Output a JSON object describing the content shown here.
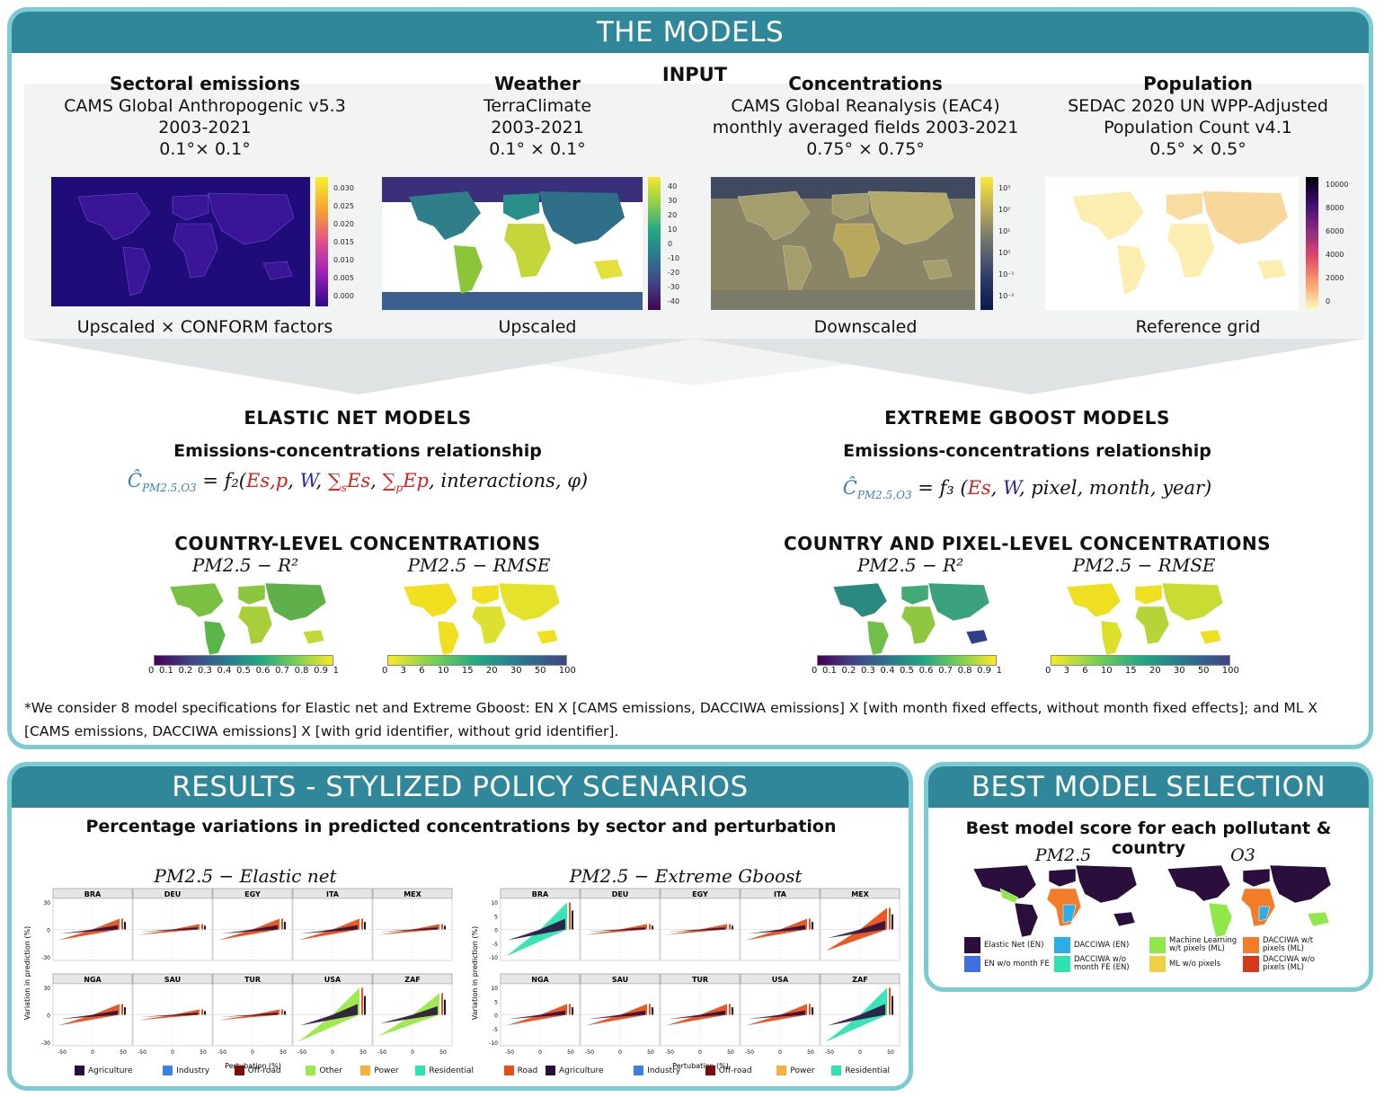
{
  "models_panel": {
    "title": "THE MODELS",
    "input_label": "INPUT",
    "inputs": [
      {
        "title": "Sectoral emissions",
        "line1": "CAMS Global Anthropogenic v5.3",
        "line2": "2003-2021",
        "line3": "0.1°× 0.1°",
        "caption": "Upscaled × CONFORM factors",
        "ticks": [
          "0.030",
          "0.025",
          "0.020",
          "0.015",
          "0.010",
          "0.005",
          "0.000"
        ]
      },
      {
        "title": "Weather",
        "line1": "TerraClimate",
        "line2": "2003-2021",
        "line3": "0.1° × 0.1°",
        "caption": "Upscaled",
        "ticks": [
          "40",
          "30",
          "20",
          "10",
          "0",
          "-10",
          "-20",
          "-30",
          "-40"
        ]
      },
      {
        "title": "Concentrations",
        "line1": "CAMS Global Reanalysis (EAC4)",
        "line2": "monthly averaged fields 2003-2021",
        "line3": "0.75° × 0.75°",
        "caption": "Downscaled",
        "ticks": [
          "10³",
          "10²",
          "10¹",
          "10⁰",
          "10⁻¹",
          "10⁻²"
        ]
      },
      {
        "title": "Population",
        "line1": "SEDAC 2020 UN WPP-Adjusted",
        "line2": "Population Count v4.1",
        "line3": "0.5° × 0.5°",
        "caption": "Reference grid",
        "ticks": [
          "10000",
          "8000",
          "6000",
          "4000",
          "2000",
          "0"
        ]
      }
    ],
    "elastic": {
      "title": "ELASTIC NET MODELS",
      "subtitle": "Emissions-concentrations relationship",
      "formula": {
        "lhs": "Ĉ",
        "lhs_sub": "PM2.5,O3",
        "eq": " = f₂(",
        "e_sp": "Es,p",
        ", ": ", ",
        "w": "W",
        "sum_s": "∑",
        "es": "Es",
        "sum_p": "∑",
        "ep": "Ep",
        "rest": ", interactions, φ)",
        "s": "s",
        "p": "p"
      },
      "conc_title": "COUNTRY-LEVEL CONCENTRATIONS",
      "map1_label": "PM2.5 − R²",
      "map2_label": "PM2.5 − RMSE",
      "r2_ticks": [
        "0",
        "0.1",
        "0.2",
        "0.3",
        "0.4",
        "0.5",
        "0.6",
        "0.7",
        "0.8",
        "0.9",
        "1"
      ],
      "rmse_ticks": [
        "0",
        "3",
        "6",
        "10",
        "15",
        "20",
        "30",
        "50",
        "100"
      ]
    },
    "xgb": {
      "title": "EXTREME GBOOST MODELS",
      "subtitle": "Emissions-concentrations relationship",
      "formula": {
        "lhs": "Ĉ",
        "lhs_sub": "PM2.5,O3",
        "eq": " = f₃ (",
        "es": "Es",
        ", ": ", ",
        "w": "W",
        "rest": ", pixel, month, year)"
      },
      "conc_title": "COUNTRY AND PIXEL-LEVEL CONCENTRATIONS",
      "map1_label": "PM2.5 − R²",
      "map2_label": "PM2.5 − RMSE",
      "r2_ticks": [
        "0",
        "0.1",
        "0.2",
        "0.3",
        "0.4",
        "0.5",
        "0.6",
        "0.7",
        "0.8",
        "0.9",
        "1"
      ],
      "rmse_ticks": [
        "0",
        "3",
        "6",
        "10",
        "15",
        "20",
        "30",
        "50",
        "100"
      ]
    },
    "footnote": "*We consider 8 model specifications for Elastic net and Extreme Gboost: EN X [CAMS emissions, DACCIWA emissions] X [with month fixed effects, without month fixed effects]; and ML X [CAMS emissions, DACCIWA emissions] X [with grid identifier, without grid identifier]."
  },
  "results_panel": {
    "title": "RESULTS - STYLIZED POLICY SCENARIOS",
    "subtitle": "Percentage variations in predicted concentrations by sector and perturbation",
    "chart_data": [
      {
        "type": "area",
        "title": "PM2.5 − Elastic net",
        "ylabel": "Variation in prediction (%)",
        "xlabel": "Pertubation (%)",
        "facets": [
          "BRA",
          "DEU",
          "EGY",
          "ITA",
          "MEX",
          "NGA",
          "SAU",
          "TUR",
          "USA",
          "ZAF"
        ],
        "x_ticks": [
          "-50",
          "0",
          "50"
        ],
        "y_ticks": [
          "30",
          "0",
          "-30"
        ],
        "peaks": [
          2,
          1,
          2,
          2,
          1,
          2,
          1,
          1,
          5,
          4
        ],
        "series": [
          {
            "name": "Agriculture"
          },
          {
            "name": "Industry"
          },
          {
            "name": "Off-road"
          },
          {
            "name": "Other"
          },
          {
            "name": "Power"
          },
          {
            "name": "Residential"
          },
          {
            "name": "Road"
          }
        ]
      },
      {
        "type": "area",
        "title": "PM2.5 − Extreme Gboost",
        "ylabel": "Variation in prediction (%)",
        "xlabel": "Pertubation (%)",
        "facets": [
          "BRA",
          "DEU",
          "EGY",
          "ITA",
          "MEX",
          "NGA",
          "SAU",
          "TUR",
          "USA",
          "ZAF"
        ],
        "x_ticks": [
          "-50",
          "0",
          "50"
        ],
        "y_ticks": [
          "10",
          "5",
          "0",
          "-5",
          "-10"
        ],
        "peaks": [
          5,
          1,
          1,
          2,
          4,
          2,
          2,
          2,
          2,
          5
        ],
        "series": [
          {
            "name": "Agriculture"
          },
          {
            "name": "Industry"
          },
          {
            "name": "Off-road"
          },
          {
            "name": "Power"
          },
          {
            "name": "Residential"
          },
          {
            "name": "Road"
          }
        ]
      }
    ],
    "legend1": [
      "Agriculture",
      "Industry",
      "Off-road",
      "Other",
      "Power",
      "Residential",
      "Road"
    ],
    "legend2": [
      "Agriculture",
      "Industry",
      "Off-road",
      "Power",
      "Residential",
      "Road"
    ]
  },
  "best_panel": {
    "title": "BEST MODEL SELECTION",
    "subtitle": "Best model score for each pollutant & country",
    "map1_label": "PM2.5",
    "map2_label": "O3",
    "legend": [
      {
        "label": "Elastic Net (EN)",
        "color": "#2a0f3d"
      },
      {
        "label": "EN w/o month FE",
        "color": "#3f6fe0"
      },
      {
        "label": "DACCIWA (EN)",
        "color": "#2aaee8"
      },
      {
        "label": "DACCIWA w/o month FE (EN)",
        "color": "#2fe3b0"
      },
      {
        "label": "Machine Learning w/t pixels (ML)",
        "color": "#8fe84a"
      },
      {
        "label": "ML w/o pixels",
        "color": "#f0d040"
      },
      {
        "label": "DACCIWA w/t pixels (ML)",
        "color": "#f37c28"
      },
      {
        "label": "DACCIWA w/o pixels (ML)",
        "color": "#d23a1a"
      }
    ]
  },
  "colors": {
    "accent": "#2f8799",
    "border": "#7ccbd3",
    "formula_blue": "#3a7fb0",
    "formula_red": "#d32020",
    "formula_navy": "#2a2aa0"
  }
}
